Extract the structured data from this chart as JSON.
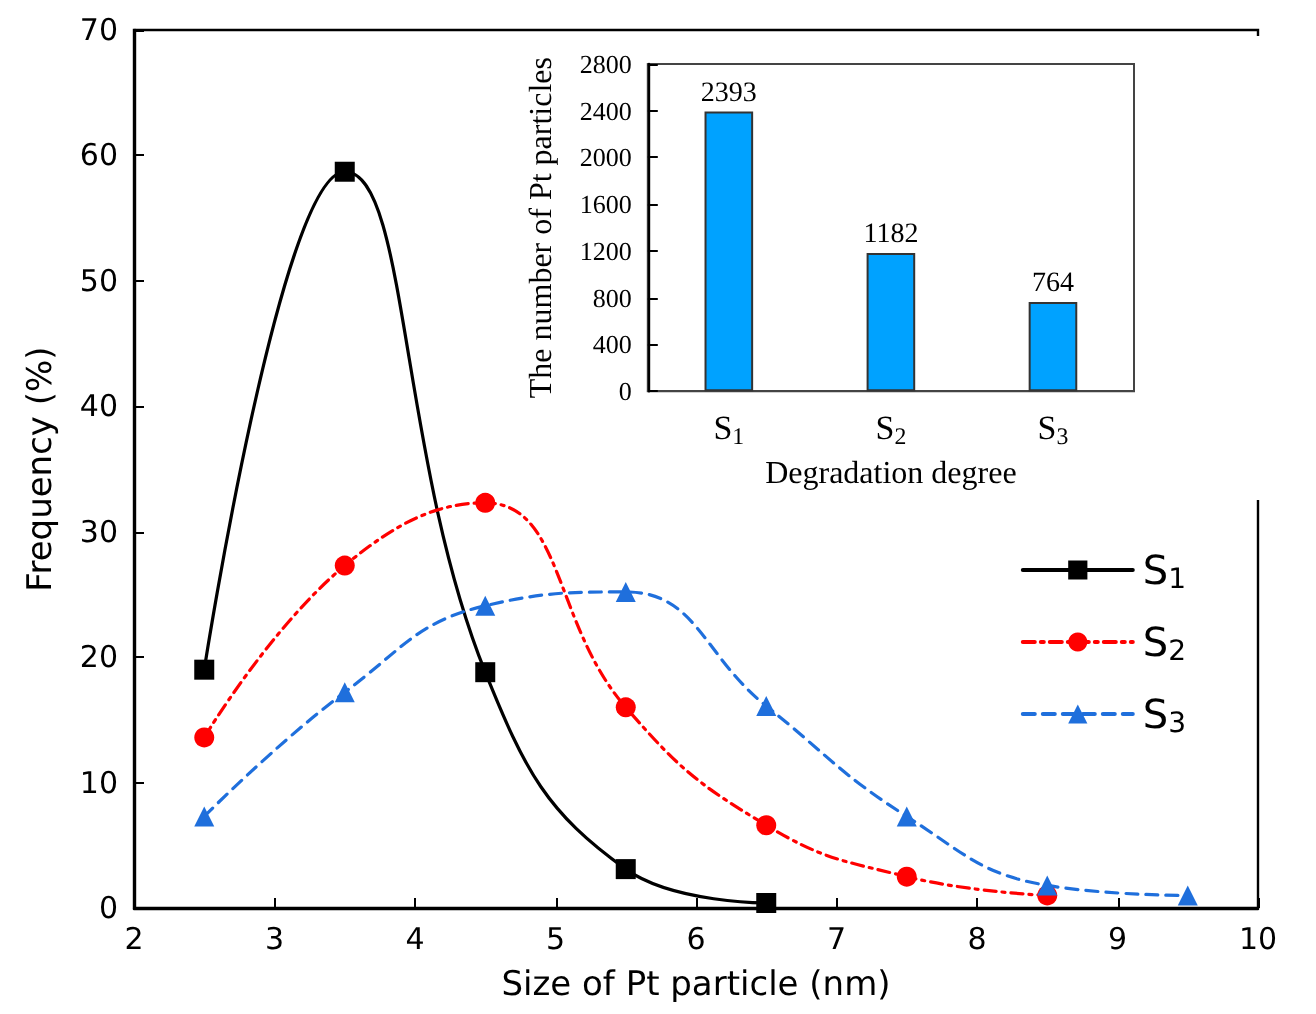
{
  "chart_data": [
    {
      "type": "line",
      "xlabel": "Size of Pt particle (nm)",
      "ylabel": "Frequency (%)",
      "xlim": [
        2,
        10
      ],
      "xticks": [
        2,
        3,
        4,
        5,
        6,
        7,
        8,
        9,
        10
      ],
      "ylim": [
        0,
        70
      ],
      "yticks": [
        0,
        10,
        20,
        30,
        40,
        50,
        60,
        70
      ],
      "grid": false,
      "legend": "right",
      "series": [
        {
          "name": "S$_{1}$",
          "color": "#000000",
          "marker": "square",
          "line_style": "solid",
          "x": [
            2.5,
            3.5,
            4.5,
            5.5,
            6.5
          ],
          "values": [
            19.0,
            58.7,
            18.8,
            3.1,
            0.4
          ]
        },
        {
          "name": "S$_{2}$",
          "color": "#ff0000",
          "marker": "circle",
          "line_style": "dashdot",
          "x": [
            2.5,
            3.5,
            4.5,
            5.5,
            6.5,
            7.5,
            8.5
          ],
          "values": [
            13.6,
            27.3,
            32.3,
            16.0,
            6.6,
            2.5,
            1.0
          ]
        },
        {
          "name": "S$_{3}$",
          "color": "#1f6fdc",
          "marker": "triangle",
          "line_style": "dashed",
          "x": [
            2.5,
            3.5,
            4.5,
            5.5,
            6.5,
            7.5,
            8.5,
            9.5
          ],
          "values": [
            7.3,
            17.2,
            24.1,
            25.2,
            16.1,
            7.3,
            1.8,
            1.0
          ]
        }
      ]
    },
    {
      "type": "bar",
      "xlabel": "Degradation degree",
      "ylabel": "The number of Pt particles",
      "categories": [
        "S$_{1}$",
        "S$_{2}$",
        "S$_{3}$"
      ],
      "values": [
        2393,
        1182,
        764
      ],
      "color": "#00a2ff",
      "ylim": [
        0,
        2800
      ],
      "yticks": [
        0,
        400,
        800,
        1200,
        1600,
        2000,
        2400,
        2800
      ],
      "data_labels": true,
      "grid": false
    }
  ]
}
